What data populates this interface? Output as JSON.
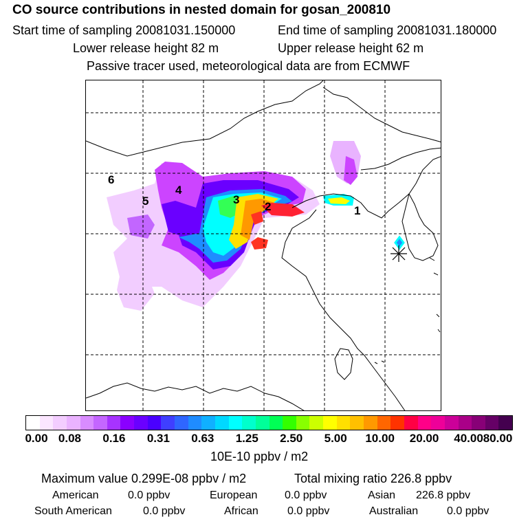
{
  "header": {
    "title": "CO  source contributions in nested domain for gosan_200810",
    "start_time": "Start time of sampling 20081031.150000",
    "end_time": "End time of sampling 20081031.180000",
    "lower_height": "Lower release height   82 m",
    "upper_height": "Upper release height   62 m",
    "tracer_note": "Passive tracer used, meteorological data are from ECMWF"
  },
  "map": {
    "region_labels": [
      "1",
      "2",
      "3",
      "4",
      "5",
      "6"
    ],
    "receptor_icon": "asterisk-icon"
  },
  "colorbar": {
    "ticks": [
      "0.00",
      "0.08",
      "0.16",
      "0.31",
      "0.63",
      "1.25",
      "2.50",
      "5.00",
      "10.00",
      "20.00",
      "40.00",
      "80.00"
    ],
    "units": "10E-10 ppbv / m2",
    "colors": [
      "#ffffff",
      "#fbe6ff",
      "#f3cdff",
      "#eab3ff",
      "#d98cff",
      "#c466ff",
      "#a733ff",
      "#8a00ff",
      "#6a00ff",
      "#4a00ff",
      "#3f3fff",
      "#2f66ff",
      "#1f8cff",
      "#10b0ff",
      "#00d8ff",
      "#00ffff",
      "#00ffcc",
      "#00ff99",
      "#00ff55",
      "#33ff00",
      "#88ff00",
      "#ccff00",
      "#ffff00",
      "#ffe000",
      "#ffc000",
      "#ff9900",
      "#ff6600",
      "#ff3300",
      "#ff0044",
      "#ff0088",
      "#ee0099",
      "#cc0099",
      "#aa0088",
      "#880077",
      "#660066",
      "#44004f"
    ]
  },
  "summary": {
    "maximum": "Maximum value  0.299E-08 ppbv / m2",
    "total": "Total mixing ratio      226.8 ppbv",
    "sources": [
      {
        "name": "American",
        "value": "0.0 ppbv"
      },
      {
        "name": "European",
        "value": "0.0 ppbv"
      },
      {
        "name": "Asian",
        "value": "226.8 ppbv"
      },
      {
        "name": "South American",
        "value": "0.0 ppbv"
      },
      {
        "name": "African",
        "value": "0.0 ppbv"
      },
      {
        "name": "Australian",
        "value": "0.0 ppbv"
      }
    ]
  }
}
